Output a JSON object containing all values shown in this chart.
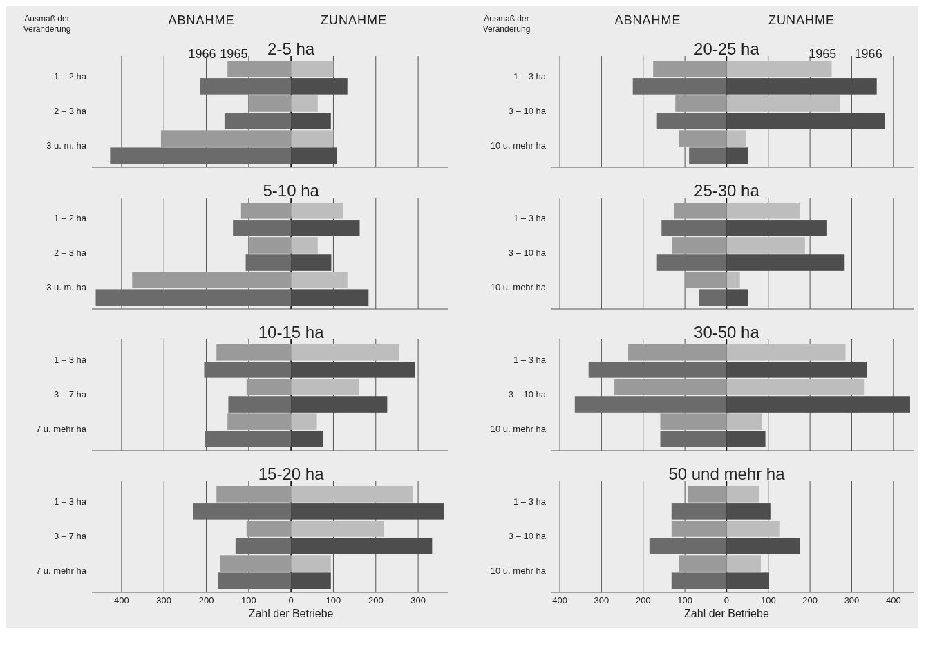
{
  "chart_data": [
    {
      "type": "bar",
      "orientation": "horizontal",
      "stacked": true,
      "title": "2-5 ha",
      "categories": [
        "1 – 2 ha",
        null,
        "2 – 3 ha",
        null,
        "3 u. m. ha",
        null
      ],
      "xlim": [
        -470,
        370
      ],
      "xticks": [
        -400,
        -300,
        -200,
        -100,
        0,
        100,
        200,
        300
      ],
      "grid": "x",
      "tick_labels": "y",
      "annotations": [
        "Ausmaß der Veränderung",
        "ABNAHME",
        "ZUNAHME",
        {
          "text": "1966",
          "x": -210,
          "y": "1 – 2 ha"
        },
        {
          "text": "1965",
          "x": -135,
          "y": "1 – 2 ha"
        }
      ],
      "series": [
        {
          "color": "#9a9a9a",
          "values": [
            -150,
            null,
            -98,
            null,
            -307,
            null
          ]
        },
        {
          "color": "#bdbdbd",
          "values": [
            100,
            null,
            63,
            null,
            100,
            null
          ]
        },
        {
          "color": "#6b6b6b",
          "values": [
            null,
            -215,
            null,
            -157,
            null,
            -427
          ]
        },
        {
          "color": "#4d4d4d",
          "values": [
            null,
            133,
            null,
            94,
            null,
            108
          ]
        }
      ]
    },
    {
      "type": "bar",
      "orientation": "horizontal",
      "stacked": true,
      "title": "5-10 ha",
      "categories": [
        "1 – 2 ha",
        null,
        "2 – 3 ha",
        null,
        "3 u. m. ha",
        null
      ],
      "xlim": [
        -470,
        370
      ],
      "xticks": [
        -400,
        -300,
        -200,
        -100,
        0,
        100,
        200,
        300
      ],
      "grid": "x",
      "tick_labels": "y",
      "series": [
        {
          "color": "#9a9a9a",
          "values": [
            -118,
            null,
            -98,
            null,
            -375,
            null
          ]
        },
        {
          "color": "#bdbdbd",
          "values": [
            122,
            null,
            63,
            null,
            133,
            null
          ]
        },
        {
          "color": "#6b6b6b",
          "values": [
            null,
            -137,
            null,
            -107,
            null,
            -461
          ]
        },
        {
          "color": "#4d4d4d",
          "values": [
            null,
            162,
            null,
            95,
            null,
            183
          ]
        }
      ]
    },
    {
      "type": "bar",
      "orientation": "horizontal",
      "stacked": true,
      "title": "10-15 ha",
      "categories": [
        "1 – 3 ha",
        null,
        "3 – 7 ha",
        null,
        "7 u. mehr ha",
        null
      ],
      "xlim": [
        -470,
        370
      ],
      "xticks": [
        -400,
        -300,
        -200,
        -100,
        0,
        100,
        200,
        300
      ],
      "grid": "x",
      "tick_labels": "y",
      "series": [
        {
          "color": "#9a9a9a",
          "values": [
            -176,
            null,
            -105,
            null,
            -150,
            null
          ]
        },
        {
          "color": "#bdbdbd",
          "values": [
            255,
            null,
            160,
            null,
            61,
            null
          ]
        },
        {
          "color": "#6b6b6b",
          "values": [
            null,
            -205,
            null,
            -148,
            null,
            -203
          ]
        },
        {
          "color": "#4d4d4d",
          "values": [
            null,
            292,
            null,
            227,
            null,
            75
          ]
        }
      ]
    },
    {
      "type": "bar",
      "orientation": "horizontal",
      "stacked": true,
      "title": "15-20 ha",
      "xlabel": "Zahl der Betriebe",
      "categories": [
        "1 – 3 ha",
        null,
        "3 – 7 ha",
        null,
        "7 u. mehr ha",
        null
      ],
      "xlim": [
        -470,
        370
      ],
      "xticks": [
        {
          "value": -400,
          "label": "400"
        },
        {
          "value": -300,
          "label": "300"
        },
        {
          "value": -200,
          "label": "200"
        },
        {
          "value": -100,
          "label": "100"
        },
        0,
        100,
        200,
        300
      ],
      "grid": "x",
      "series": [
        {
          "color": "#9a9a9a",
          "values": [
            -176,
            null,
            -105,
            null,
            -167,
            null
          ]
        },
        {
          "color": "#bdbdbd",
          "values": [
            288,
            null,
            220,
            null,
            94,
            null
          ]
        },
        {
          "color": "#6b6b6b",
          "values": [
            null,
            -231,
            null,
            -131,
            null,
            -173
          ]
        },
        {
          "color": "#4d4d4d",
          "values": [
            null,
            361,
            null,
            333,
            null,
            94
          ]
        }
      ]
    },
    {
      "type": "bar",
      "orientation": "horizontal",
      "stacked": true,
      "title": "20-25 ha",
      "categories": [
        "1 – 3 ha",
        null,
        "3 – 10 ha",
        null,
        "10 u. mehr ha",
        null
      ],
      "xlim": [
        -420,
        450
      ],
      "xticks": [
        -400,
        -300,
        -200,
        -100,
        0,
        100,
        200,
        300,
        400
      ],
      "grid": "x",
      "tick_labels": "y",
      "annotations": [
        "Ausmaß der Veränderung",
        "ABNAHME",
        "ZUNAHME",
        {
          "text": "1965",
          "x": 230,
          "y": "1 – 3 ha"
        },
        {
          "text": "1966",
          "x": 340,
          "y": "1 – 3 ha"
        }
      ],
      "series": [
        {
          "color": "#9a9a9a",
          "values": [
            -176,
            null,
            -123,
            null,
            -114,
            null
          ]
        },
        {
          "color": "#bdbdbd",
          "values": [
            252,
            null,
            272,
            null,
            46,
            null
          ]
        },
        {
          "color": "#6b6b6b",
          "values": [
            null,
            -225,
            null,
            -167,
            null,
            -90
          ]
        },
        {
          "color": "#4d4d4d",
          "values": [
            null,
            360,
            null,
            380,
            null,
            52
          ]
        }
      ]
    },
    {
      "type": "bar",
      "orientation": "horizontal",
      "stacked": true,
      "title": "25-30 ha",
      "categories": [
        "1 – 3 ha",
        null,
        "3 – 10 ha",
        null,
        "10 u. mehr ha",
        null
      ],
      "xlim": [
        -420,
        450
      ],
      "xticks": [
        -400,
        -300,
        -200,
        -100,
        0,
        100,
        200,
        300,
        400
      ],
      "grid": "x",
      "tick_labels": "y",
      "series": [
        {
          "color": "#9a9a9a",
          "values": [
            -126,
            null,
            -130,
            null,
            -99,
            null
          ]
        },
        {
          "color": "#bdbdbd",
          "values": [
            175,
            null,
            188,
            null,
            32,
            null
          ]
        },
        {
          "color": "#6b6b6b",
          "values": [
            null,
            -156,
            null,
            -167,
            null,
            -66
          ]
        },
        {
          "color": "#4d4d4d",
          "values": [
            null,
            241,
            null,
            283,
            null,
            52
          ]
        }
      ]
    },
    {
      "type": "bar",
      "orientation": "horizontal",
      "stacked": true,
      "title": "30-50 ha",
      "categories": [
        "1 – 3 ha",
        null,
        "3 – 10 ha",
        null,
        "10 u. mehr ha",
        null
      ],
      "xlim": [
        -420,
        450
      ],
      "xticks": [
        -400,
        -300,
        -200,
        -100,
        0,
        100,
        200,
        300,
        400
      ],
      "grid": "x",
      "tick_labels": "y",
      "series": [
        {
          "color": "#9a9a9a",
          "values": [
            -236,
            null,
            -269,
            null,
            -159,
            null
          ]
        },
        {
          "color": "#bdbdbd",
          "values": [
            285,
            null,
            331,
            null,
            85,
            null
          ]
        },
        {
          "color": "#6b6b6b",
          "values": [
            null,
            -331,
            null,
            -364,
            null,
            -159
          ]
        },
        {
          "color": "#4d4d4d",
          "values": [
            null,
            336,
            null,
            440,
            null,
            93
          ]
        }
      ]
    },
    {
      "type": "bar",
      "orientation": "horizontal",
      "stacked": true,
      "title": "50 und mehr ha",
      "xlabel": "Zahl der Betriebe",
      "categories": [
        "1 – 3 ha",
        null,
        "3 – 10 ha",
        null,
        "10 u. mehr ha",
        null
      ],
      "xlim": [
        -420,
        450
      ],
      "xticks": [
        {
          "value": -400,
          "label": "400"
        },
        {
          "value": -300,
          "label": "300"
        },
        {
          "value": -200,
          "label": "200"
        },
        {
          "value": -100,
          "label": "100"
        },
        0,
        100,
        200,
        300,
        400
      ],
      "grid": "x",
      "series": [
        {
          "color": "#9a9a9a",
          "values": [
            -93,
            null,
            -132,
            null,
            -114,
            null
          ]
        },
        {
          "color": "#bdbdbd",
          "values": [
            78,
            null,
            128,
            null,
            82,
            null
          ]
        },
        {
          "color": "#6b6b6b",
          "values": [
            null,
            -132,
            null,
            -185,
            null,
            -132
          ]
        },
        {
          "color": "#4d4d4d",
          "values": [
            null,
            105,
            null,
            175,
            null,
            102
          ]
        }
      ]
    }
  ]
}
